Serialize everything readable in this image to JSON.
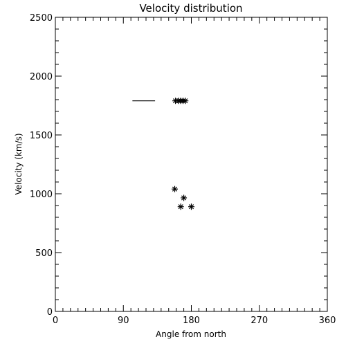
{
  "chart_data": {
    "type": "scatter",
    "title": "Velocity distribution",
    "xlabel": "Angle from north",
    "ylabel": "Velocity (km/s)",
    "xlim": [
      0,
      360
    ],
    "ylim": [
      0,
      2500
    ],
    "x_ticks": [
      "0",
      "90",
      "180",
      "270",
      "360"
    ],
    "y_ticks": [
      "0",
      "500",
      "1000",
      "1500",
      "2000",
      "2500"
    ],
    "grid": false,
    "series": [
      {
        "marker": "star",
        "points": [
          {
            "x": 159,
            "y": 1790
          },
          {
            "x": 163,
            "y": 1790
          },
          {
            "x": 166,
            "y": 1790
          },
          {
            "x": 169,
            "y": 1790
          },
          {
            "x": 172,
            "y": 1790
          },
          {
            "x": 158,
            "y": 1040
          },
          {
            "x": 170,
            "y": 965
          },
          {
            "x": 166,
            "y": 890
          },
          {
            "x": 180,
            "y": 890
          }
        ]
      },
      {
        "marker": "line",
        "points": [
          {
            "x": 102,
            "y": 1790
          },
          {
            "x": 132,
            "y": 1790
          }
        ]
      }
    ]
  }
}
